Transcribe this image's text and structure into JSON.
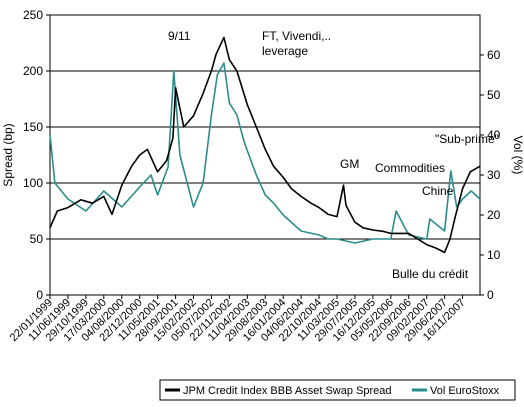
{
  "chart_data": {
    "type": "line",
    "y_left": {
      "label": "Spread (bp)",
      "range": [
        0,
        250
      ],
      "ticks": [
        "0",
        "50",
        "100",
        "150",
        "200",
        "250"
      ]
    },
    "y_right": {
      "label": "Vol (%)",
      "range": [
        0,
        70
      ],
      "ticks": [
        "0",
        "10",
        "20",
        "30",
        "40",
        "50",
        "60"
      ]
    },
    "x_range": [
      "1999-01-22",
      "2008-03-31"
    ],
    "x_ticks": [
      "22/01/1999",
      "11/06/1999",
      "29/10/1999",
      "17/03/2000",
      "04/08/2000",
      "22/12/2000",
      "11/05/2001",
      "28/09/2001",
      "15/02/2002",
      "05/07/2002",
      "22/11/2002",
      "11/04/2003",
      "29/08/2003",
      "16/01/2004",
      "04/06/2004",
      "22/10/2004",
      "11/03/2005",
      "29/07/2005",
      "16/12/2005",
      "05/05/2006",
      "22/09/2006",
      "09/02/2007",
      "29/06/2007",
      "16/11/2007"
    ],
    "grid": "horizontal",
    "legend_position": "bottom",
    "series": [
      {
        "name": "JPM Credit Index BBB Asset Swap Spread",
        "axis": "left",
        "color": "#000000",
        "x": [
          "1999-01-22",
          "1999-03-20",
          "1999-06-11",
          "1999-09-20",
          "1999-12-20",
          "2000-03-17",
          "2000-05-20",
          "2000-08-04",
          "2000-10-20",
          "2000-12-22",
          "2001-02-20",
          "2001-05-11",
          "2001-07-20",
          "2001-09-07",
          "2001-09-28",
          "2001-12-01",
          "2002-02-15",
          "2002-05-01",
          "2002-07-05",
          "2002-08-10",
          "2002-10-10",
          "2002-11-22",
          "2003-01-20",
          "2003-04-11",
          "2003-06-20",
          "2003-08-29",
          "2003-11-01",
          "2004-01-16",
          "2004-03-20",
          "2004-06-04",
          "2004-08-20",
          "2004-10-22",
          "2005-01-01",
          "2005-03-11",
          "2005-05-01",
          "2005-05-20",
          "2005-07-29",
          "2005-10-01",
          "2005-12-16",
          "2006-03-01",
          "2006-05-05",
          "2006-07-20",
          "2006-09-22",
          "2006-12-01",
          "2007-02-09",
          "2007-04-20",
          "2007-06-29",
          "2007-08-10",
          "2007-09-20",
          "2007-11-16",
          "2008-01-15",
          "2008-03-31"
        ],
        "y": [
          60,
          75,
          78,
          85,
          82,
          88,
          72,
          98,
          115,
          125,
          130,
          110,
          120,
          140,
          185,
          150,
          160,
          180,
          200,
          215,
          230,
          210,
          200,
          170,
          150,
          130,
          115,
          105,
          95,
          88,
          82,
          78,
          72,
          70,
          98,
          80,
          65,
          60,
          58,
          57,
          55,
          55,
          55,
          50,
          45,
          42,
          38,
          50,
          70,
          95,
          110,
          115
        ]
      },
      {
        "name": "Vol EuroStoxx",
        "axis": "right",
        "color": "#2c8c8c",
        "x": [
          "1999-01-22",
          "1999-03-01",
          "1999-06-11",
          "1999-10-29",
          "2000-03-17",
          "2000-08-04",
          "2000-12-22",
          "2001-03-20",
          "2001-05-11",
          "2001-08-01",
          "2001-09-14",
          "2001-11-01",
          "2002-02-15",
          "2002-05-01",
          "2002-07-05",
          "2002-08-20",
          "2002-10-10",
          "2002-11-22",
          "2003-01-20",
          "2003-03-20",
          "2003-06-20",
          "2003-08-29",
          "2003-11-01",
          "2004-01-16",
          "2004-06-04",
          "2004-10-22",
          "2005-01-01",
          "2005-03-11",
          "2005-07-29",
          "2005-12-16",
          "2006-05-05",
          "2006-06-15",
          "2006-09-22",
          "2007-02-09",
          "2007-03-05",
          "2007-06-29",
          "2007-08-16",
          "2007-10-01",
          "2007-11-16",
          "2008-01-22",
          "2008-03-31"
        ],
        "y": [
          40,
          28,
          24,
          21,
          26,
          22,
          27,
          30,
          25,
          32,
          56,
          35,
          22,
          28,
          45,
          55,
          58,
          48,
          45,
          38,
          30,
          25,
          23,
          20,
          16,
          15,
          14,
          14,
          13,
          14,
          14,
          21,
          15,
          14,
          19,
          16,
          31,
          22,
          24,
          26,
          24
        ]
      }
    ],
    "annotations": [
      "9/11",
      "FT, Vivendi,..",
      "leverage",
      "GM",
      "Commodities",
      "Chine",
      "\"Sub-prime\"",
      "Bulle du crédit"
    ]
  }
}
